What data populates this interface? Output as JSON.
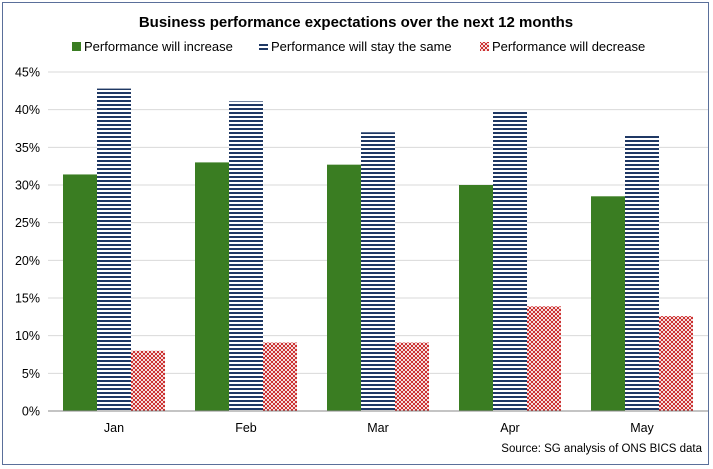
{
  "chart_data": {
    "type": "bar",
    "title": "Business performance expectations over the next 12 months",
    "categories": [
      "Jan",
      "Feb",
      "Mar",
      "Apr",
      "May"
    ],
    "series": [
      {
        "name": "Performance will increase",
        "values": [
          31.4,
          33.0,
          32.7,
          30.0,
          28.5
        ],
        "color": "#3a7d22",
        "pattern": "solid"
      },
      {
        "name": "Performance will stay the same",
        "values": [
          42.8,
          41.1,
          37.0,
          39.8,
          36.6
        ],
        "color": "#1f3864",
        "pattern": "horizontal-stripes"
      },
      {
        "name": "Performance will decrease",
        "values": [
          8.0,
          9.1,
          9.1,
          13.9,
          12.6
        ],
        "color": "#c00000",
        "pattern": "crosshatch"
      }
    ],
    "ylim": [
      0,
      45
    ],
    "yticks": [
      "0%",
      "5%",
      "10%",
      "15%",
      "20%",
      "25%",
      "30%",
      "35%",
      "40%",
      "45%"
    ],
    "ytick_values": [
      0,
      5,
      10,
      15,
      20,
      25,
      30,
      35,
      40,
      45
    ],
    "y_unit": "percent",
    "grid": true,
    "legend_position": "top",
    "source": "Source: SG analysis of ONS BICS data"
  }
}
